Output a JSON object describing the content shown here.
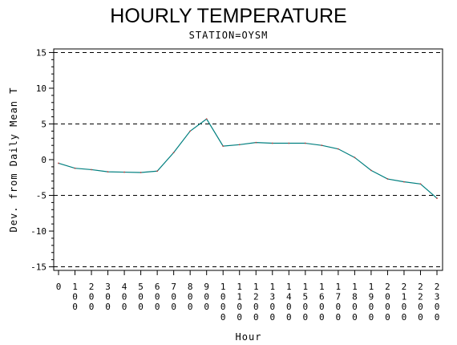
{
  "title": "HOURLY TEMPERATURE",
  "subtitle": "STATION=OYSM",
  "chart_data": {
    "type": "line",
    "title": "HOURLY TEMPERATURE",
    "subtitle": "STATION=OYSM",
    "xlabel": "Hour",
    "ylabel": "Dev. from Daily Mean T",
    "x": [
      "0",
      "100",
      "200",
      "300",
      "400",
      "500",
      "600",
      "700",
      "800",
      "900",
      "1000",
      "1100",
      "1200",
      "1300",
      "1400",
      "1500",
      "1600",
      "1700",
      "1800",
      "1900",
      "2000",
      "2100",
      "2200",
      "2300"
    ],
    "series": [
      {
        "values": [
          -0.5,
          -1.2,
          -1.4,
          -1.7,
          -1.75,
          -1.8,
          -1.6,
          1.0,
          4.0,
          5.7,
          1.9,
          2.1,
          2.4,
          2.3,
          2.3,
          2.3,
          2.0,
          1.5,
          0.3,
          -1.5,
          -2.7,
          -3.1,
          -3.4,
          -5.4
        ]
      }
    ],
    "yticks": [
      -15,
      -10,
      -5,
      0,
      5,
      10,
      15
    ],
    "ylim": [
      -15.5,
      15.5
    ],
    "reference_lines": [
      -15,
      -5,
      5,
      15
    ],
    "grid": false,
    "line_color": "#007f7f"
  }
}
